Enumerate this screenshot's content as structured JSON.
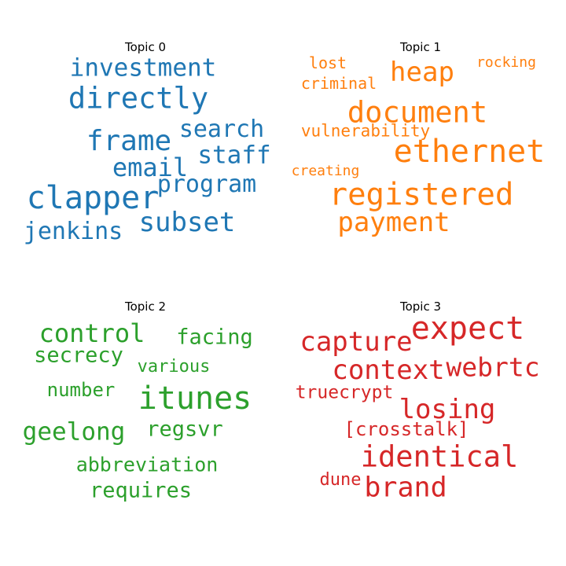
{
  "chart_data": [
    {
      "type": "wordcloud",
      "title": "Topic 0",
      "color": "#1f77b4",
      "words": [
        {
          "text": "investment",
          "size": 31
        },
        {
          "text": "directly",
          "size": 37
        },
        {
          "text": "frame",
          "size": 36
        },
        {
          "text": "search",
          "size": 30
        },
        {
          "text": "staff",
          "size": 31
        },
        {
          "text": "email",
          "size": 32
        },
        {
          "text": "program",
          "size": 30
        },
        {
          "text": "clapper",
          "size": 40
        },
        {
          "text": "subset",
          "size": 34
        },
        {
          "text": "jenkins",
          "size": 30
        }
      ]
    },
    {
      "type": "wordcloud",
      "title": "Topic 1",
      "color": "#ff7f0e",
      "words": [
        {
          "text": "lost",
          "size": 20
        },
        {
          "text": "heap",
          "size": 34
        },
        {
          "text": "rocking",
          "size": 18
        },
        {
          "text": "criminal",
          "size": 20
        },
        {
          "text": "document",
          "size": 37
        },
        {
          "text": "vulnerability",
          "size": 21
        },
        {
          "text": "ethernet",
          "size": 40
        },
        {
          "text": "creating",
          "size": 18
        },
        {
          "text": "registered",
          "size": 39
        },
        {
          "text": "payment",
          "size": 34
        }
      ]
    },
    {
      "type": "wordcloud",
      "title": "Topic 2",
      "color": "#2ca02c",
      "words": [
        {
          "text": "control",
          "size": 32
        },
        {
          "text": "facing",
          "size": 27
        },
        {
          "text": "secrecy",
          "size": 27
        },
        {
          "text": "various",
          "size": 22
        },
        {
          "text": "number",
          "size": 24
        },
        {
          "text": "itunes",
          "size": 40
        },
        {
          "text": "geelong",
          "size": 31
        },
        {
          "text": "regsvr",
          "size": 27
        },
        {
          "text": "abbreviation",
          "size": 25
        },
        {
          "text": "requires",
          "size": 27
        }
      ]
    },
    {
      "type": "wordcloud",
      "title": "Topic 3",
      "color": "#d62728",
      "words": [
        {
          "text": "capture",
          "size": 34
        },
        {
          "text": "expect",
          "size": 40
        },
        {
          "text": "context",
          "size": 34
        },
        {
          "text": "webrtc",
          "size": 33
        },
        {
          "text": "truecrypt",
          "size": 23
        },
        {
          "text": "losing",
          "size": 34
        },
        {
          "text": "[crosstalk]",
          "size": 24
        },
        {
          "text": "identical",
          "size": 37
        },
        {
          "text": "dune",
          "size": 22
        },
        {
          "text": "brand",
          "size": 35
        }
      ]
    }
  ]
}
